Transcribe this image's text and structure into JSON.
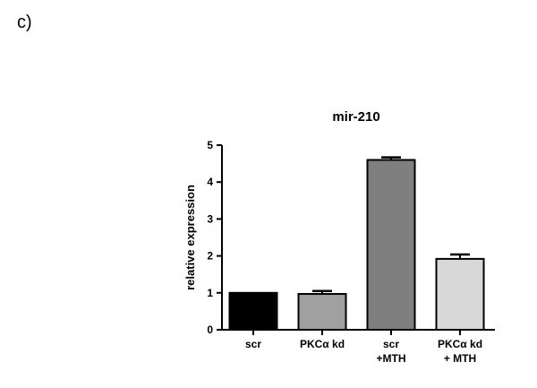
{
  "panel_label": "c)",
  "chart_data": {
    "type": "bar",
    "title": "mir-210",
    "xlabel": "",
    "ylabel": "relative expression",
    "ylim": [
      0,
      5
    ],
    "yticks": [
      "0",
      "1",
      "2",
      "3",
      "4",
      "5"
    ],
    "categories": [
      {
        "line1": "scr",
        "line2": ""
      },
      {
        "line1": "PKCα kd",
        "line2": ""
      },
      {
        "line1": "scr",
        "line2": "+MTH"
      },
      {
        "line1": "PKCα kd",
        "line2": "+ MTH"
      }
    ],
    "values": [
      1.0,
      0.97,
      4.6,
      1.92
    ],
    "errors": [
      0.0,
      0.08,
      0.07,
      0.12
    ],
    "colors": [
      "#000000",
      "#a0a0a0",
      "#7f7f7f",
      "#d8d8d8"
    ],
    "grid": false,
    "legend": "none"
  }
}
